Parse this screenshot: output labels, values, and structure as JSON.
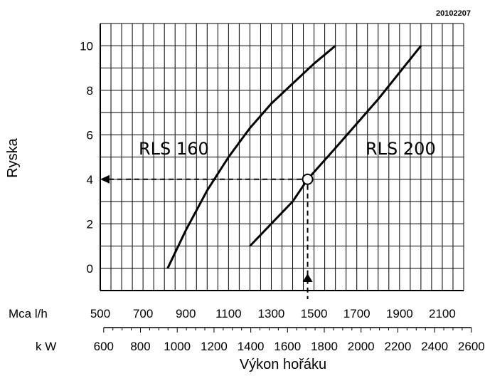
{
  "chart_data": {
    "type": "line",
    "code": "20102207",
    "ylabel": "Ryska",
    "xlabel": "Výkon hořáku",
    "ylim": [
      -1,
      11
    ],
    "yticks": [
      0,
      2,
      4,
      6,
      8,
      10
    ],
    "mcal_axis": {
      "label": "Mca l/h",
      "range": [
        500,
        2200
      ],
      "ticks": [
        500,
        700,
        900,
        1100,
        1300,
        1500,
        1700,
        1900,
        2100
      ]
    },
    "kw_axis": {
      "label": "k W",
      "ticks": [
        600,
        800,
        1000,
        1200,
        1400,
        1600,
        1800,
        2000,
        2200,
        2400,
        2600
      ]
    },
    "series": [
      {
        "name": "RLS 160",
        "x": [
          815,
          900,
          1000,
          1100,
          1200,
          1300,
          1400,
          1500,
          1600
        ],
        "y": [
          0,
          1.7,
          3.5,
          5.0,
          6.3,
          7.4,
          8.3,
          9.2,
          10
        ]
      },
      {
        "name": "RLS 200",
        "x": [
          1200,
          1400,
          1470,
          1600,
          1800,
          2000
        ],
        "y": [
          1,
          3.0,
          4,
          5.4,
          7.6,
          10
        ]
      }
    ],
    "annotation": {
      "x": 1470,
      "y": 4
    }
  }
}
